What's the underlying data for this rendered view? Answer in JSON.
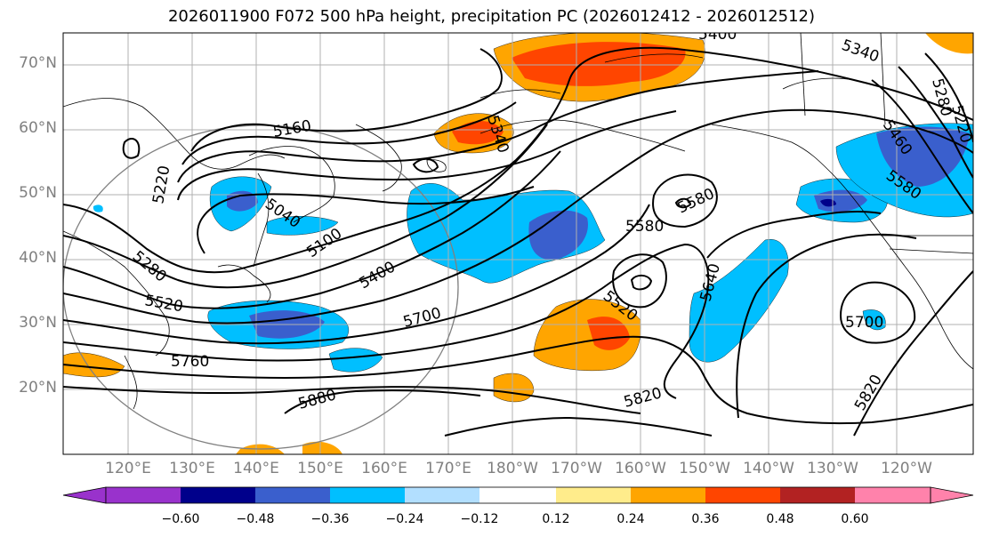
{
  "title": "2026011900 F072 500 hPa height, precipitation PC (2026012412 - 2026012512)",
  "lat_labels": [
    "70°N",
    "60°N",
    "50°N",
    "40°N",
    "30°N",
    "20°N"
  ],
  "lon_labels": [
    "120°E",
    "130°E",
    "140°E",
    "150°E",
    "160°E",
    "170°E",
    "180°W",
    "170°W",
    "160°W",
    "150°W",
    "140°W",
    "130°W",
    "120°W"
  ],
  "contour_labels": [
    "5400",
    "5340",
    "5280",
    "5460",
    "5220",
    "5160",
    "5340",
    "5220",
    "5040",
    "5100",
    "5400",
    "5580",
    "5580",
    "5580",
    "5640",
    "5700",
    "5280",
    "5520",
    "5520",
    "5700",
    "5760",
    "5820",
    "5880",
    "5820"
  ],
  "colorbar": {
    "colors": [
      "#9932cc",
      "#00008b",
      "#3a5fcd",
      "#00bfff",
      "#b2dfff",
      "#ffffff",
      "#ffec8b",
      "#ffa500",
      "#ff4500",
      "#b22222",
      "#ff82ab"
    ],
    "ticks": [
      "−0.60",
      "−0.48",
      "−0.36",
      "−0.24",
      "−0.12",
      "0.12",
      "0.24",
      "0.36",
      "0.48",
      "0.60"
    ]
  }
}
